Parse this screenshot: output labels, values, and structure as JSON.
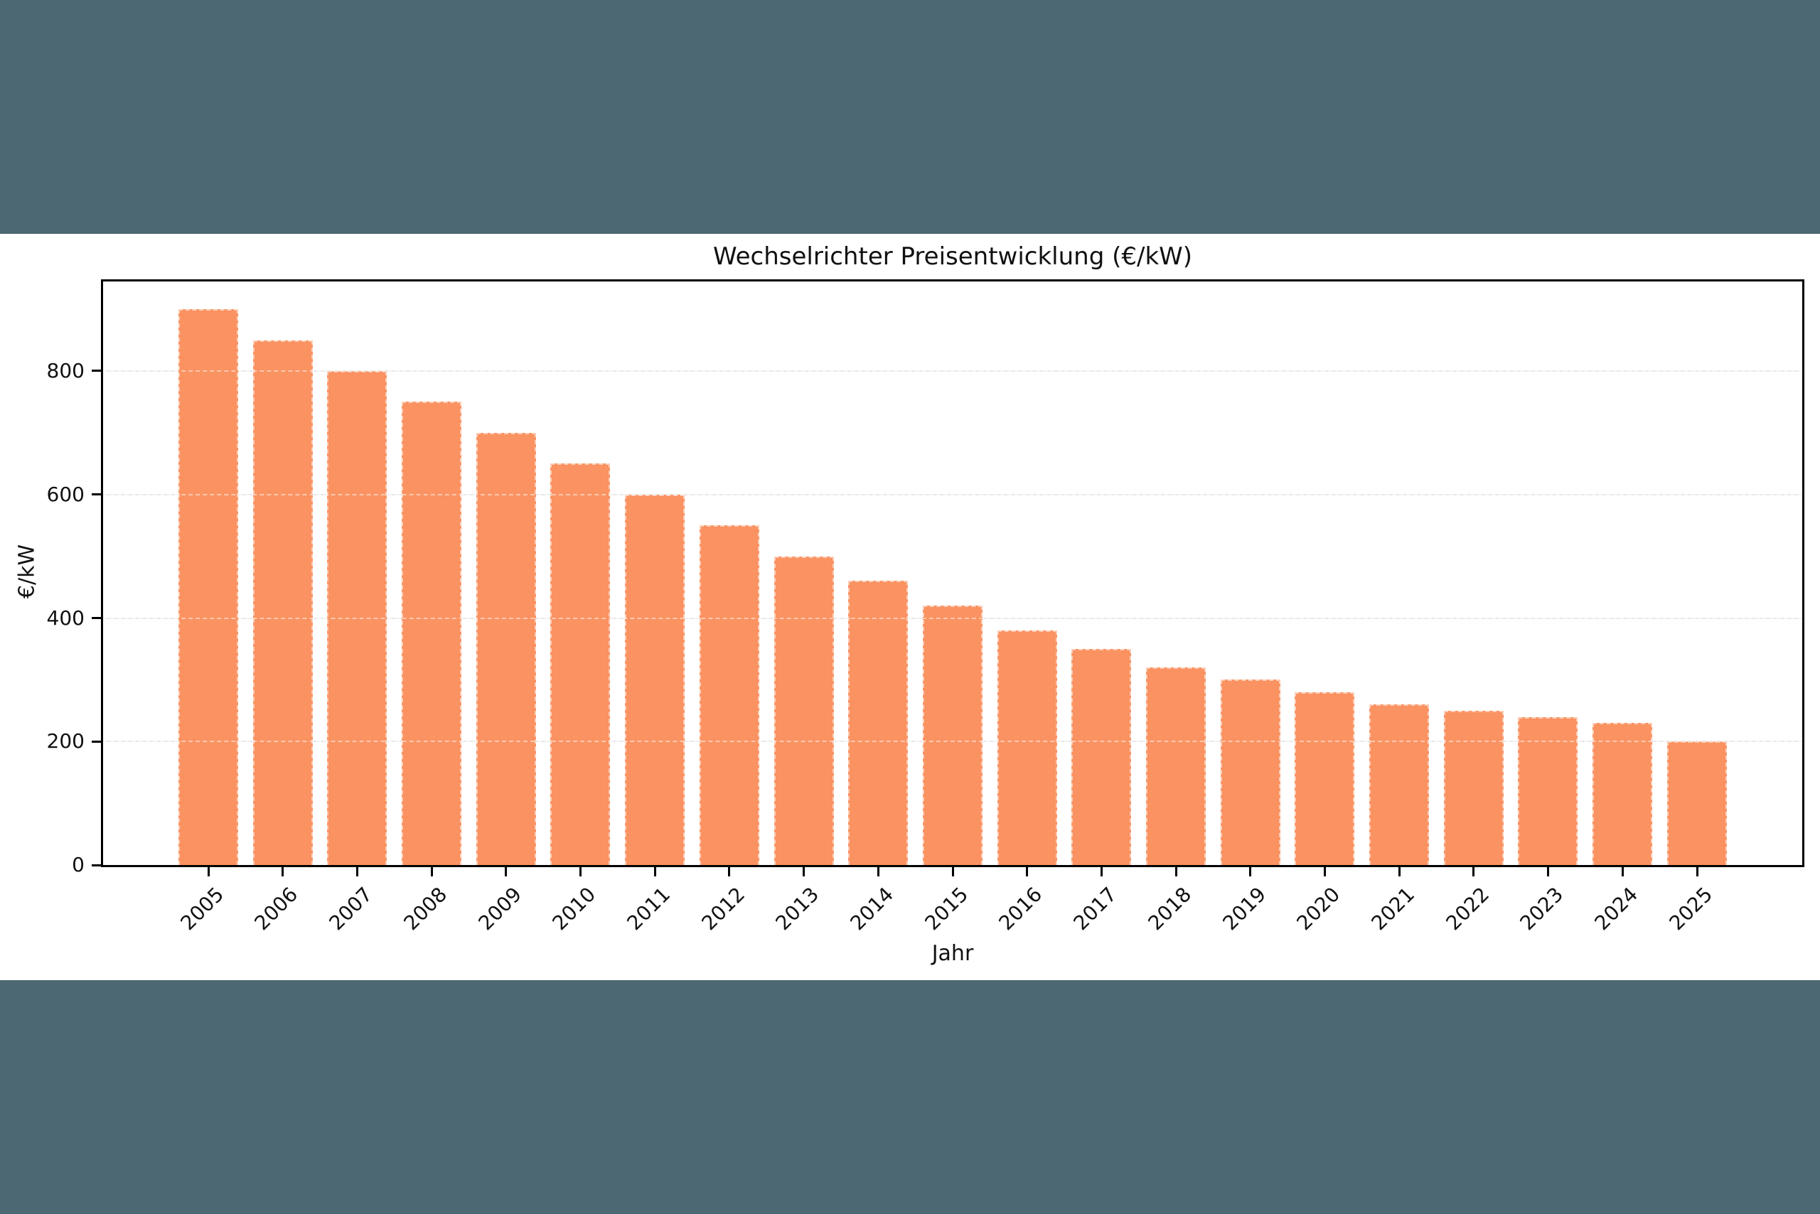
{
  "screen": {
    "background_color": "#4C6872",
    "chart_background": "#FFFFFF"
  },
  "chart_data": {
    "type": "bar",
    "title": "Wechselrichter Preisentwicklung (€/kW)",
    "xlabel": "Jahr",
    "ylabel": "€/kW",
    "categories": [
      "2005",
      "2006",
      "2007",
      "2008",
      "2009",
      "2010",
      "2011",
      "2012",
      "2013",
      "2014",
      "2015",
      "2016",
      "2017",
      "2018",
      "2019",
      "2020",
      "2021",
      "2022",
      "2023",
      "2024",
      "2025"
    ],
    "values": [
      900,
      850,
      800,
      750,
      700,
      650,
      600,
      550,
      500,
      460,
      420,
      380,
      350,
      320,
      300,
      280,
      260,
      250,
      240,
      230,
      200
    ],
    "yticks": [
      0,
      200,
      400,
      600,
      800
    ],
    "ylim": [
      0,
      945
    ],
    "xtick_rotation_deg": 45,
    "grid": true,
    "legend": false,
    "bar_color": "#FA9261",
    "gridline_color": "#E7E7E7",
    "axis_color": "#000000"
  }
}
